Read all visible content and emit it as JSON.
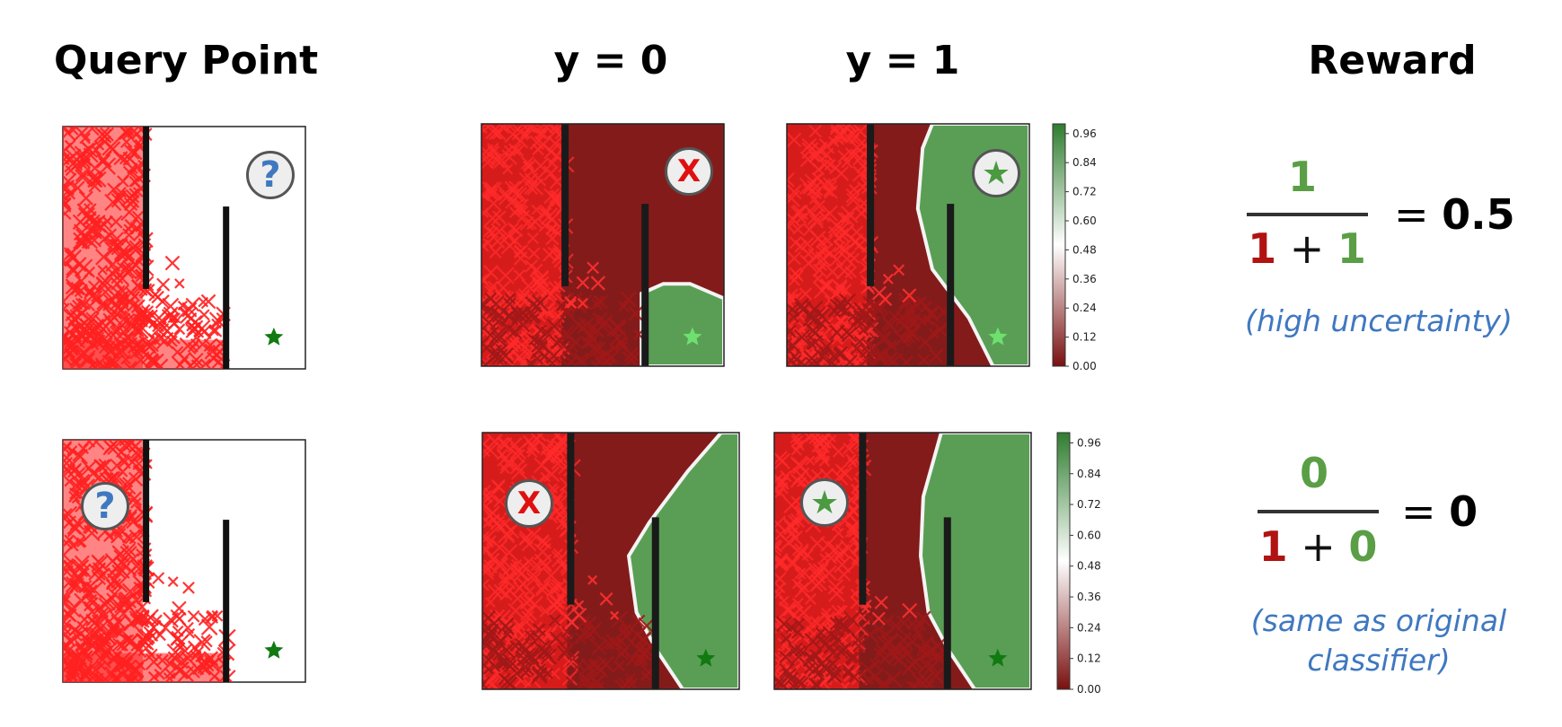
{
  "headers": {
    "query_point": "Query Point",
    "y0": "y = 0",
    "y1": "y = 1",
    "reward": "Reward"
  },
  "badges": {
    "query": "?",
    "negative": "X",
    "positive": "★"
  },
  "colorbar": {
    "ticks": [
      "0.96",
      "0.84",
      "0.72",
      "0.60",
      "0.48",
      "0.36",
      "0.24",
      "0.12",
      "0.00"
    ]
  },
  "rows": [
    {
      "numerator": "1",
      "den_a": "1",
      "den_plus": "+",
      "den_b": "1",
      "equals": "=",
      "result": "0.5",
      "note_lines": [
        "(high uncertainty)"
      ]
    },
    {
      "numerator": "0",
      "den_a": "1",
      "den_plus": "+",
      "den_b": "0",
      "equals": "=",
      "result": "0",
      "note_lines": [
        "(same as original",
        "classifier)"
      ]
    }
  ],
  "colors": {
    "red_marker": "#ff2020",
    "dark_red": "#841b1b",
    "green_region": "#5a9e55",
    "goal_green": "#117a11",
    "light_goal": "#6fe06f",
    "wall": "#111111",
    "question_blue": "#3f78c0",
    "numerator_green": "#5a9e45",
    "denominator_red": "#b11212"
  }
}
